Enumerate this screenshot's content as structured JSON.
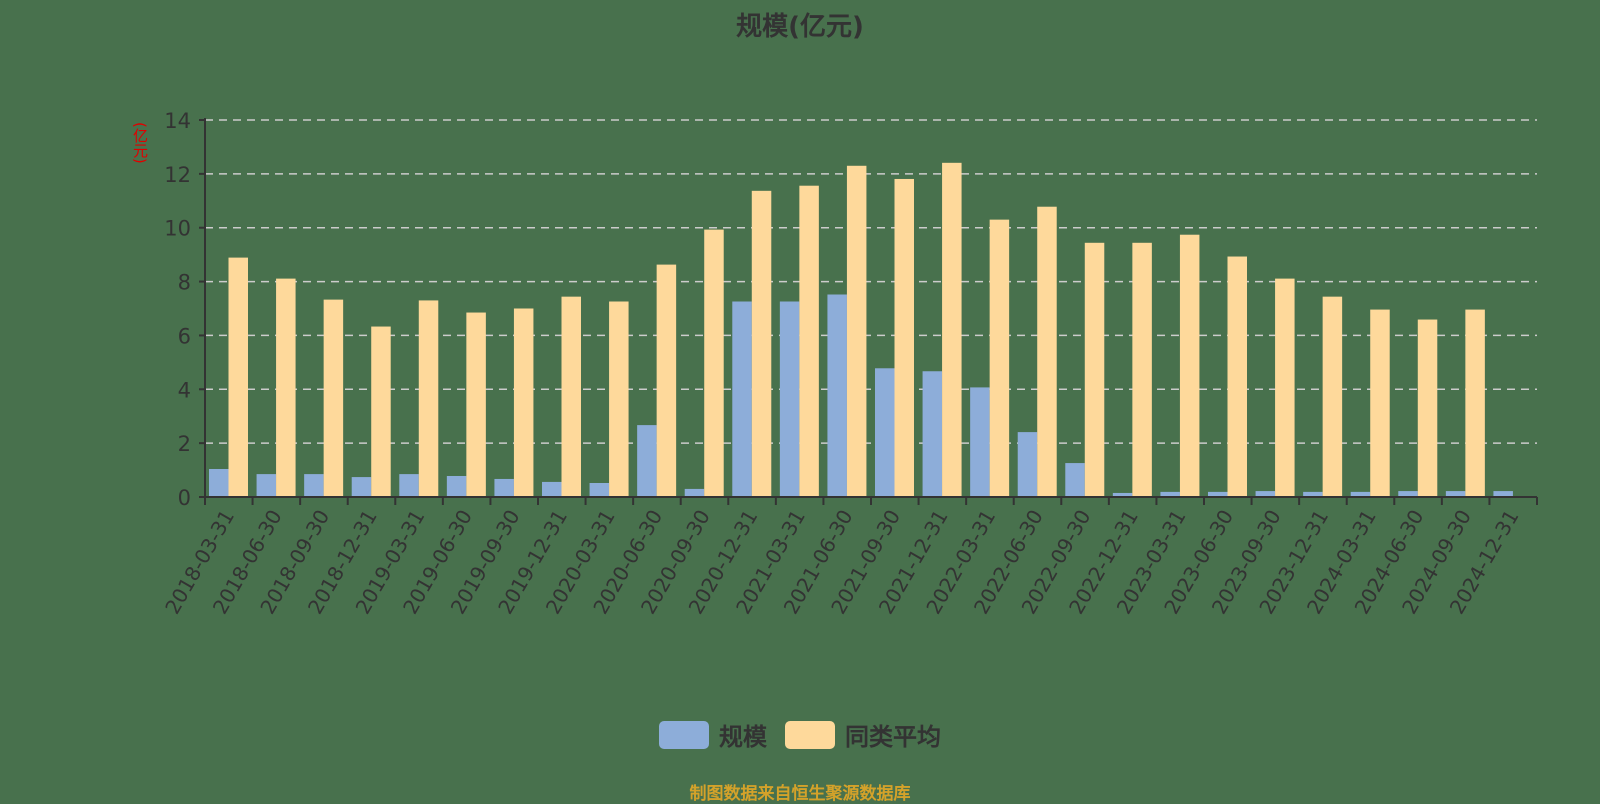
{
  "title": "规模(亿元)",
  "y_axis_label": "(亿元)",
  "legend": [
    {
      "label": "规模",
      "color": "#8dadd9"
    },
    {
      "label": "同类平均",
      "color": "#fed99b"
    }
  ],
  "footer": "制图数据来自恒生聚源数据库",
  "colors": {
    "background": "#48714d",
    "axis": "#333333",
    "grid": "#cccccc",
    "y_label": "#e00000",
    "footer": "#d4a22a"
  },
  "chart_data": {
    "type": "bar",
    "title": "规模(亿元)",
    "xlabel": "",
    "ylabel": "(亿元)",
    "ylim": [
      0,
      14
    ],
    "yticks": [
      0,
      2,
      4,
      6,
      8,
      10,
      12,
      14
    ],
    "grid": true,
    "legend_position": "bottom",
    "categories": [
      "2018-03-31",
      "2018-06-30",
      "2018-09-30",
      "2018-12-31",
      "2019-03-31",
      "2019-06-30",
      "2019-09-30",
      "2019-12-31",
      "2020-03-31",
      "2020-06-30",
      "2020-09-30",
      "2020-12-31",
      "2021-03-31",
      "2021-06-30",
      "2021-09-30",
      "2021-12-31",
      "2022-03-31",
      "2022-06-30",
      "2022-09-30",
      "2022-12-31",
      "2023-03-31",
      "2023-06-30",
      "2023-09-30",
      "2023-12-31",
      "2024-03-31",
      "2024-06-30",
      "2024-09-30",
      "2024-12-31"
    ],
    "series": [
      {
        "name": "规模",
        "color": "#8dadd9",
        "values": [
          1.04,
          0.85,
          0.85,
          0.74,
          0.85,
          0.78,
          0.67,
          0.56,
          0.52,
          2.67,
          0.3,
          7.26,
          7.26,
          7.52,
          4.78,
          4.67,
          4.07,
          2.41,
          1.26,
          0.15,
          0.19,
          0.19,
          0.22,
          0.19,
          0.19,
          0.22,
          0.22,
          0.22
        ]
      },
      {
        "name": "同类平均",
        "color": "#fed99b",
        "values": [
          8.89,
          8.11,
          7.33,
          6.33,
          7.3,
          6.85,
          7.0,
          7.44,
          7.26,
          8.63,
          9.93,
          11.37,
          11.56,
          12.3,
          11.81,
          12.41,
          10.3,
          10.78,
          9.44,
          9.44,
          9.74,
          8.93,
          8.11,
          7.44,
          6.96,
          6.59,
          6.96,
          null
        ]
      }
    ]
  }
}
